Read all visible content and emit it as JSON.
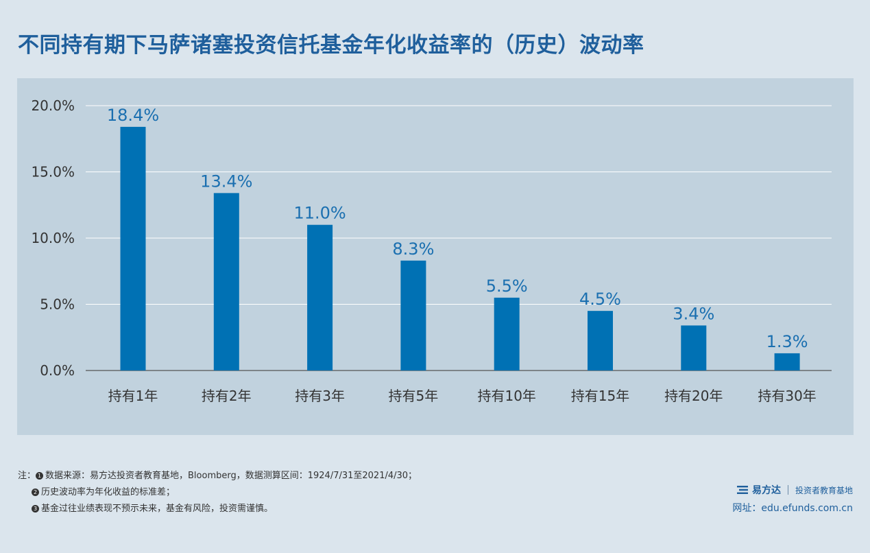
{
  "title": "不同持有期下马萨诸塞投资信托基金年化收益率的（历史）波动率",
  "chart_data": {
    "type": "bar",
    "categories": [
      "持有1年",
      "持有2年",
      "持有3年",
      "持有5年",
      "持有10年",
      "持有15年",
      "持有20年",
      "持有30年"
    ],
    "values": [
      18.4,
      13.4,
      11.0,
      8.3,
      5.5,
      4.5,
      3.4,
      1.3
    ],
    "value_labels": [
      "18.4%",
      "13.4%",
      "11.0%",
      "8.3%",
      "5.5%",
      "4.5%",
      "3.4%",
      "1.3%"
    ],
    "y_ticks": [
      0,
      5,
      10,
      15,
      20
    ],
    "y_tick_labels": [
      "0.0%",
      "5.0%",
      "10.0%",
      "15.0%",
      "20.0%"
    ],
    "ylim": [
      0,
      20
    ],
    "grid": true,
    "bar_color": "#0071b4",
    "label_color": "#1a6fb0"
  },
  "notes": {
    "prefix": "注：",
    "items": [
      {
        "num": "1",
        "text": "数据来源：易方达投资者教育基地，Bloomberg，数据测算区间：1924/7/31至2021/4/30；"
      },
      {
        "num": "2",
        "text": "历史波动率为年化收益的标准差；"
      },
      {
        "num": "3",
        "text": "基金过往业绩表现不预示未来，基金有风险，投资需谨慎。"
      }
    ]
  },
  "brand": {
    "name": "易方达",
    "tagline": "投资者教育基地",
    "website": "网址：edu.efunds.com.cn"
  },
  "colors": {
    "background": "#dbe5ed",
    "panel": "#c1d2de",
    "title": "#1f5f9c"
  }
}
